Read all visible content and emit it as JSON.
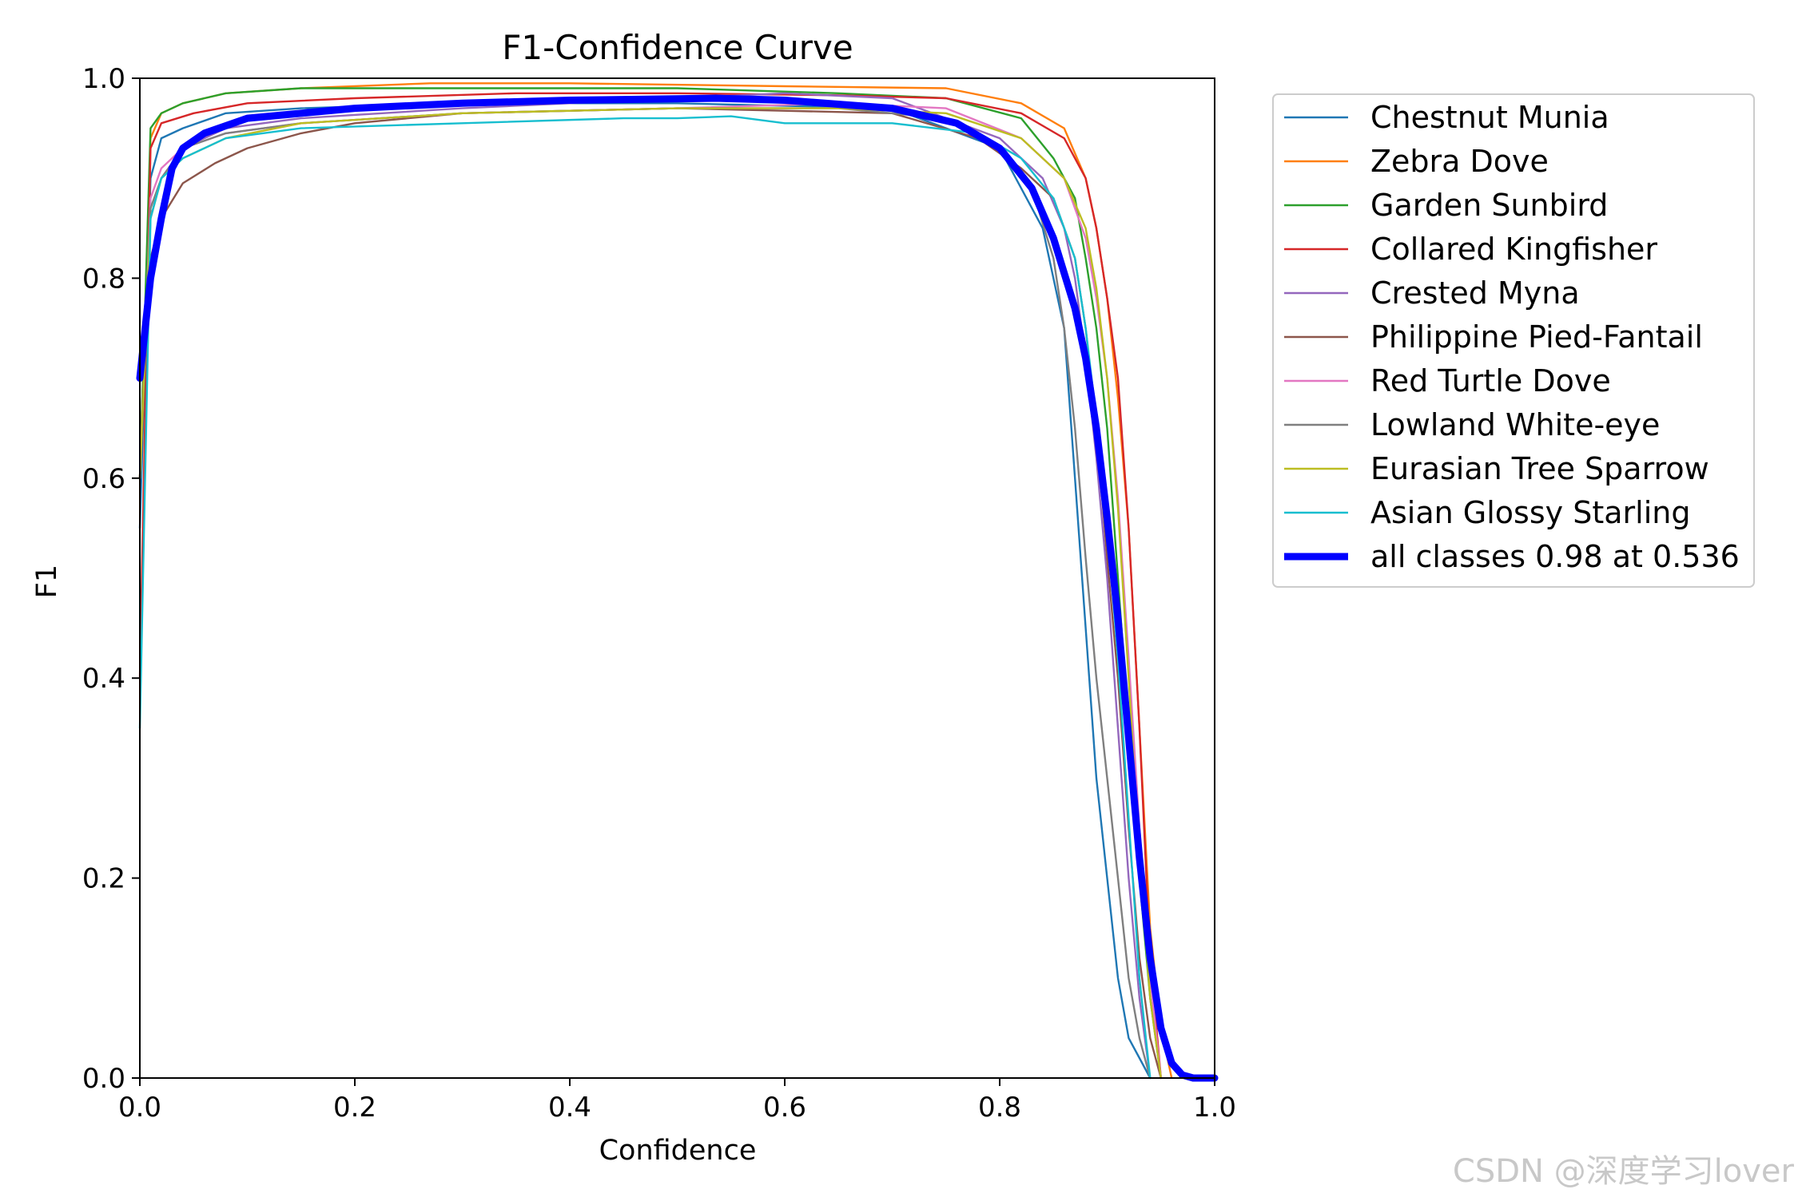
{
  "chart_data": {
    "type": "line",
    "title": "F1-Confidence Curve",
    "xlabel": "Confidence",
    "ylabel": "F1",
    "xlim": [
      0.0,
      1.0
    ],
    "ylim": [
      0.0,
      1.0
    ],
    "xticks": [
      "0.0",
      "0.2",
      "0.4",
      "0.6",
      "0.8",
      "1.0"
    ],
    "yticks": [
      "0.0",
      "0.2",
      "0.4",
      "0.6",
      "0.8",
      "1.0"
    ],
    "grid": false,
    "legend_position": "outside-right-top",
    "series": [
      {
        "name": "Chestnut Munia",
        "color": "#1f77b4",
        "x": [
          0.0,
          0.01,
          0.02,
          0.04,
          0.08,
          0.15,
          0.3,
          0.5,
          0.7,
          0.8,
          0.84,
          0.86,
          0.87,
          0.88,
          0.89,
          0.9,
          0.91,
          0.92,
          0.93,
          0.94
        ],
        "y": [
          0.55,
          0.9,
          0.94,
          0.95,
          0.965,
          0.97,
          0.975,
          0.975,
          0.97,
          0.93,
          0.85,
          0.75,
          0.6,
          0.45,
          0.3,
          0.2,
          0.1,
          0.04,
          0.02,
          0.0
        ]
      },
      {
        "name": "Zebra Dove",
        "color": "#ff7f0e",
        "x": [
          0.0,
          0.01,
          0.02,
          0.04,
          0.08,
          0.15,
          0.27,
          0.4,
          0.6,
          0.75,
          0.82,
          0.86,
          0.88,
          0.89,
          0.9,
          0.91,
          0.92,
          0.93,
          0.94,
          0.95,
          0.96
        ],
        "y": [
          0.6,
          0.94,
          0.965,
          0.975,
          0.985,
          0.99,
          0.995,
          0.995,
          0.992,
          0.99,
          0.975,
          0.95,
          0.9,
          0.85,
          0.78,
          0.68,
          0.55,
          0.35,
          0.15,
          0.05,
          0.0
        ]
      },
      {
        "name": "Garden Sunbird",
        "color": "#2ca02c",
        "x": [
          0.0,
          0.01,
          0.02,
          0.04,
          0.08,
          0.15,
          0.3,
          0.5,
          0.65,
          0.75,
          0.82,
          0.85,
          0.87,
          0.88,
          0.89,
          0.9,
          0.91,
          0.92,
          0.93,
          0.94,
          0.95
        ],
        "y": [
          0.6,
          0.95,
          0.965,
          0.975,
          0.985,
          0.99,
          0.99,
          0.99,
          0.985,
          0.98,
          0.96,
          0.92,
          0.88,
          0.82,
          0.75,
          0.65,
          0.5,
          0.35,
          0.2,
          0.08,
          0.0
        ]
      },
      {
        "name": "Collared Kingfisher",
        "color": "#d62728",
        "x": [
          0.0,
          0.01,
          0.02,
          0.05,
          0.1,
          0.2,
          0.35,
          0.5,
          0.65,
          0.75,
          0.82,
          0.86,
          0.88,
          0.89,
          0.9,
          0.91,
          0.92,
          0.93,
          0.94,
          0.95
        ],
        "y": [
          0.4,
          0.93,
          0.955,
          0.965,
          0.975,
          0.98,
          0.985,
          0.985,
          0.983,
          0.98,
          0.965,
          0.94,
          0.9,
          0.85,
          0.78,
          0.7,
          0.55,
          0.35,
          0.12,
          0.0
        ]
      },
      {
        "name": "Crested Myna",
        "color": "#9467bd",
        "x": [
          0.0,
          0.01,
          0.02,
          0.04,
          0.08,
          0.15,
          0.3,
          0.5,
          0.6,
          0.7,
          0.8,
          0.84,
          0.86,
          0.87,
          0.88,
          0.89,
          0.9,
          0.91,
          0.92,
          0.93,
          0.94
        ],
        "y": [
          0.6,
          0.86,
          0.9,
          0.93,
          0.95,
          0.96,
          0.97,
          0.98,
          0.985,
          0.98,
          0.94,
          0.9,
          0.85,
          0.8,
          0.72,
          0.62,
          0.5,
          0.35,
          0.2,
          0.08,
          0.0
        ]
      },
      {
        "name": "Philippine Pied-Fantail",
        "color": "#8c564b",
        "x": [
          0.0,
          0.01,
          0.02,
          0.04,
          0.07,
          0.1,
          0.15,
          0.2,
          0.3,
          0.5,
          0.7,
          0.78,
          0.82,
          0.85,
          0.87,
          0.88,
          0.89,
          0.9,
          0.91,
          0.92,
          0.93,
          0.94,
          0.95
        ],
        "y": [
          0.6,
          0.82,
          0.86,
          0.895,
          0.915,
          0.93,
          0.945,
          0.955,
          0.965,
          0.97,
          0.965,
          0.94,
          0.91,
          0.88,
          0.82,
          0.75,
          0.65,
          0.52,
          0.4,
          0.25,
          0.12,
          0.04,
          0.0
        ]
      },
      {
        "name": "Red Turtle Dove",
        "color": "#e377c2",
        "x": [
          0.0,
          0.01,
          0.02,
          0.04,
          0.08,
          0.15,
          0.3,
          0.5,
          0.65,
          0.75,
          0.82,
          0.86,
          0.88,
          0.89,
          0.9,
          0.91,
          0.92,
          0.93,
          0.94,
          0.95
        ],
        "y": [
          0.6,
          0.88,
          0.91,
          0.93,
          0.945,
          0.955,
          0.965,
          0.97,
          0.975,
          0.97,
          0.94,
          0.9,
          0.84,
          0.78,
          0.7,
          0.58,
          0.42,
          0.25,
          0.1,
          0.0
        ]
      },
      {
        "name": "Lowland White-eye",
        "color": "#7f7f7f",
        "x": [
          0.0,
          0.01,
          0.02,
          0.04,
          0.08,
          0.15,
          0.3,
          0.5,
          0.65,
          0.75,
          0.8,
          0.83,
          0.85,
          0.86,
          0.87,
          0.88,
          0.89,
          0.9,
          0.91,
          0.92,
          0.93,
          0.94
        ],
        "y": [
          0.6,
          0.87,
          0.9,
          0.93,
          0.945,
          0.955,
          0.965,
          0.97,
          0.97,
          0.96,
          0.93,
          0.89,
          0.82,
          0.75,
          0.65,
          0.52,
          0.4,
          0.3,
          0.2,
          0.1,
          0.04,
          0.0
        ]
      },
      {
        "name": "Eurasian Tree Sparrow",
        "color": "#bcbd22",
        "x": [
          0.0,
          0.01,
          0.02,
          0.04,
          0.08,
          0.15,
          0.3,
          0.5,
          0.65,
          0.75,
          0.82,
          0.86,
          0.88,
          0.89,
          0.9,
          0.91,
          0.92,
          0.93,
          0.94,
          0.95
        ],
        "y": [
          0.6,
          0.86,
          0.9,
          0.92,
          0.94,
          0.955,
          0.965,
          0.97,
          0.97,
          0.965,
          0.94,
          0.9,
          0.85,
          0.79,
          0.7,
          0.57,
          0.4,
          0.22,
          0.08,
          0.0
        ]
      },
      {
        "name": "Asian Glossy Starling",
        "color": "#17becf",
        "x": [
          0.0,
          0.01,
          0.02,
          0.04,
          0.08,
          0.15,
          0.3,
          0.45,
          0.5,
          0.55,
          0.6,
          0.7,
          0.78,
          0.82,
          0.85,
          0.87,
          0.88,
          0.89,
          0.9,
          0.91,
          0.92,
          0.93,
          0.94
        ],
        "y": [
          0.35,
          0.86,
          0.9,
          0.92,
          0.94,
          0.95,
          0.955,
          0.96,
          0.96,
          0.962,
          0.955,
          0.955,
          0.945,
          0.92,
          0.88,
          0.82,
          0.75,
          0.66,
          0.55,
          0.42,
          0.26,
          0.1,
          0.0
        ]
      },
      {
        "name": "all classes 0.98 at 0.536",
        "color": "#0000ff",
        "thick": true,
        "x": [
          0.0,
          0.01,
          0.02,
          0.03,
          0.04,
          0.06,
          0.1,
          0.2,
          0.3,
          0.4,
          0.536,
          0.6,
          0.7,
          0.76,
          0.8,
          0.83,
          0.85,
          0.87,
          0.88,
          0.89,
          0.9,
          0.91,
          0.92,
          0.93,
          0.94,
          0.95,
          0.96,
          0.97,
          0.98,
          1.0
        ],
        "y": [
          0.7,
          0.8,
          0.86,
          0.91,
          0.93,
          0.945,
          0.96,
          0.97,
          0.975,
          0.978,
          0.98,
          0.978,
          0.97,
          0.955,
          0.93,
          0.89,
          0.84,
          0.77,
          0.72,
          0.65,
          0.56,
          0.46,
          0.34,
          0.22,
          0.12,
          0.05,
          0.015,
          0.003,
          0.0,
          0.0
        ]
      }
    ]
  },
  "watermark": "CSDN @深度学习lover"
}
